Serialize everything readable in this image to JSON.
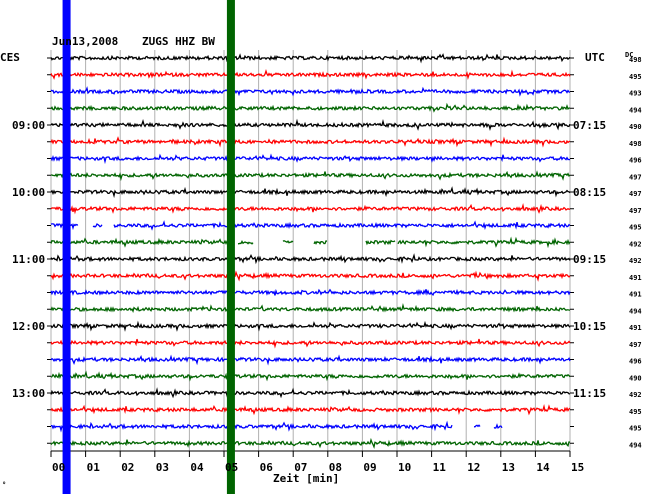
{
  "header": {
    "date": "Jun13,2008",
    "station": "ZUGS HHZ BW",
    "left_tz": "CES",
    "right_tz": "UTC",
    "dc_label": "DC"
  },
  "footer": {
    "xlabel": "Zeit [min]",
    "corner_mark": "°"
  },
  "chart_data": {
    "type": "line",
    "title": "Jun13,2008 ZUGS HHZ BW",
    "xlabel": "Zeit [min]",
    "xlim": [
      0,
      15
    ],
    "x_ticks": [
      "00",
      "01",
      "02",
      "03",
      "04",
      "05",
      "06",
      "07",
      "08",
      "09",
      "10",
      "11",
      "12",
      "13",
      "14",
      "15"
    ],
    "trace_count": 24,
    "trace_colors": [
      "#000000",
      "#ff0000",
      "#0000ff",
      "#006400"
    ],
    "left_time_labels": [
      {
        "trace": 4,
        "label": "09:00"
      },
      {
        "trace": 8,
        "label": "10:00"
      },
      {
        "trace": 12,
        "label": "11:00"
      },
      {
        "trace": 16,
        "label": "12:00"
      },
      {
        "trace": 20,
        "label": "13:00"
      }
    ],
    "right_time_labels": [
      {
        "trace": 4,
        "label": "07:15"
      },
      {
        "trace": 8,
        "label": "08:15"
      },
      {
        "trace": 12,
        "label": "09:15"
      },
      {
        "trace": 16,
        "label": "10:15"
      },
      {
        "trace": 20,
        "label": "11:15"
      }
    ],
    "dc_offsets": [
      "498",
      "495",
      "493",
      "494",
      "490",
      "498",
      "496",
      "497",
      "497",
      "497",
      "495",
      "492",
      "492",
      "491",
      "491",
      "494",
      "491",
      "497",
      "496",
      "490",
      "492",
      "495",
      "495",
      "494"
    ],
    "data_gaps": [
      {
        "trace": 10,
        "from_min": 0.8,
        "to_min": 1.2
      },
      {
        "trace": 10,
        "from_min": 1.5,
        "to_min": 1.8
      },
      {
        "trace": 11,
        "from_min": 5.2,
        "to_min": 5.4
      },
      {
        "trace": 11,
        "from_min": 5.85,
        "to_min": 6.7
      },
      {
        "trace": 11,
        "from_min": 7.0,
        "to_min": 7.6
      },
      {
        "trace": 11,
        "from_min": 8.0,
        "to_min": 9.1
      },
      {
        "trace": 11,
        "from_min": 9.95,
        "to_min": 10.0
      },
      {
        "trace": 22,
        "from_min": 11.6,
        "to_min": 12.2
      },
      {
        "trace": 22,
        "from_min": 12.4,
        "to_min": 12.8
      },
      {
        "trace": 22,
        "from_min": 13.05,
        "to_min": 15.0
      }
    ],
    "vertical_markers": [
      {
        "at_min": 0.45,
        "color": "#0000ff"
      },
      {
        "at_min": 5.2,
        "color": "#006400"
      }
    ],
    "grid": true
  }
}
